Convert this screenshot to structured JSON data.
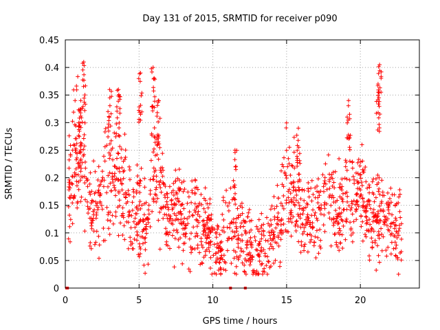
{
  "chart_data": {
    "type": "scatter",
    "title": "Day 131 of 2015, SRMTID for receiver p090",
    "xlabel": "GPS time / hours",
    "ylabel": "SRMTID / TECUs",
    "xlim": [
      0,
      24
    ],
    "ylim": [
      0,
      0.45
    ],
    "x_ticks": [
      0,
      5,
      10,
      15,
      20
    ],
    "x_tick_labels": [
      "0",
      "5",
      "10",
      "15",
      "20"
    ],
    "y_ticks": [
      0,
      0.05,
      0.1,
      0.15,
      0.2,
      0.25,
      0.3,
      0.35,
      0.4,
      0.45
    ],
    "y_tick_labels": [
      "0",
      "0.05",
      "0.1",
      "0.15",
      "0.2",
      "0.25",
      "0.3",
      "0.35",
      "0.4",
      "0.45"
    ],
    "grid": true,
    "marker": "+",
    "series": [
      {
        "name": "SRMTID",
        "color": "#ff0000",
        "trend_hours": [
          0.2,
          0.5,
          0.9,
          1.3,
          1.6,
          2.0,
          2.5,
          3.0,
          3.5,
          4.0,
          4.5,
          5.0,
          5.5,
          6.0,
          6.5,
          7.0,
          7.5,
          8.0,
          8.5,
          9.0,
          9.5,
          10.0,
          10.5,
          11.0,
          11.5,
          12.0,
          12.5,
          13.0,
          13.5,
          14.0,
          14.5,
          15.0,
          15.5,
          16.0,
          16.5,
          17.0,
          17.5,
          18.0,
          18.5,
          19.0,
          19.5,
          20.0,
          20.5,
          21.0,
          21.5,
          22.0,
          22.5,
          22.8
        ],
        "trend_values": [
          0.16,
          0.22,
          0.26,
          0.25,
          0.14,
          0.13,
          0.17,
          0.19,
          0.21,
          0.17,
          0.13,
          0.14,
          0.12,
          0.22,
          0.17,
          0.13,
          0.14,
          0.13,
          0.12,
          0.13,
          0.11,
          0.08,
          0.07,
          0.11,
          0.09,
          0.1,
          0.08,
          0.06,
          0.07,
          0.1,
          0.12,
          0.19,
          0.16,
          0.13,
          0.12,
          0.14,
          0.15,
          0.17,
          0.13,
          0.18,
          0.17,
          0.18,
          0.13,
          0.12,
          0.14,
          0.13,
          0.11,
          0.09
        ],
        "peaks": [
          {
            "x": 1.25,
            "y": 0.41
          },
          {
            "x": 1.05,
            "y": 0.34
          },
          {
            "x": 3.0,
            "y": 0.36
          },
          {
            "x": 3.6,
            "y": 0.36
          },
          {
            "x": 5.1,
            "y": 0.39
          },
          {
            "x": 5.95,
            "y": 0.4
          },
          {
            "x": 6.3,
            "y": 0.34
          },
          {
            "x": 11.5,
            "y": 0.25
          },
          {
            "x": 15.8,
            "y": 0.29
          },
          {
            "x": 19.2,
            "y": 0.34
          },
          {
            "x": 21.3,
            "y": 0.405
          },
          {
            "x": 21.2,
            "y": 0.37
          }
        ],
        "zero_points": [
          0.1,
          0.15,
          11.2,
          12.2
        ]
      }
    ]
  }
}
